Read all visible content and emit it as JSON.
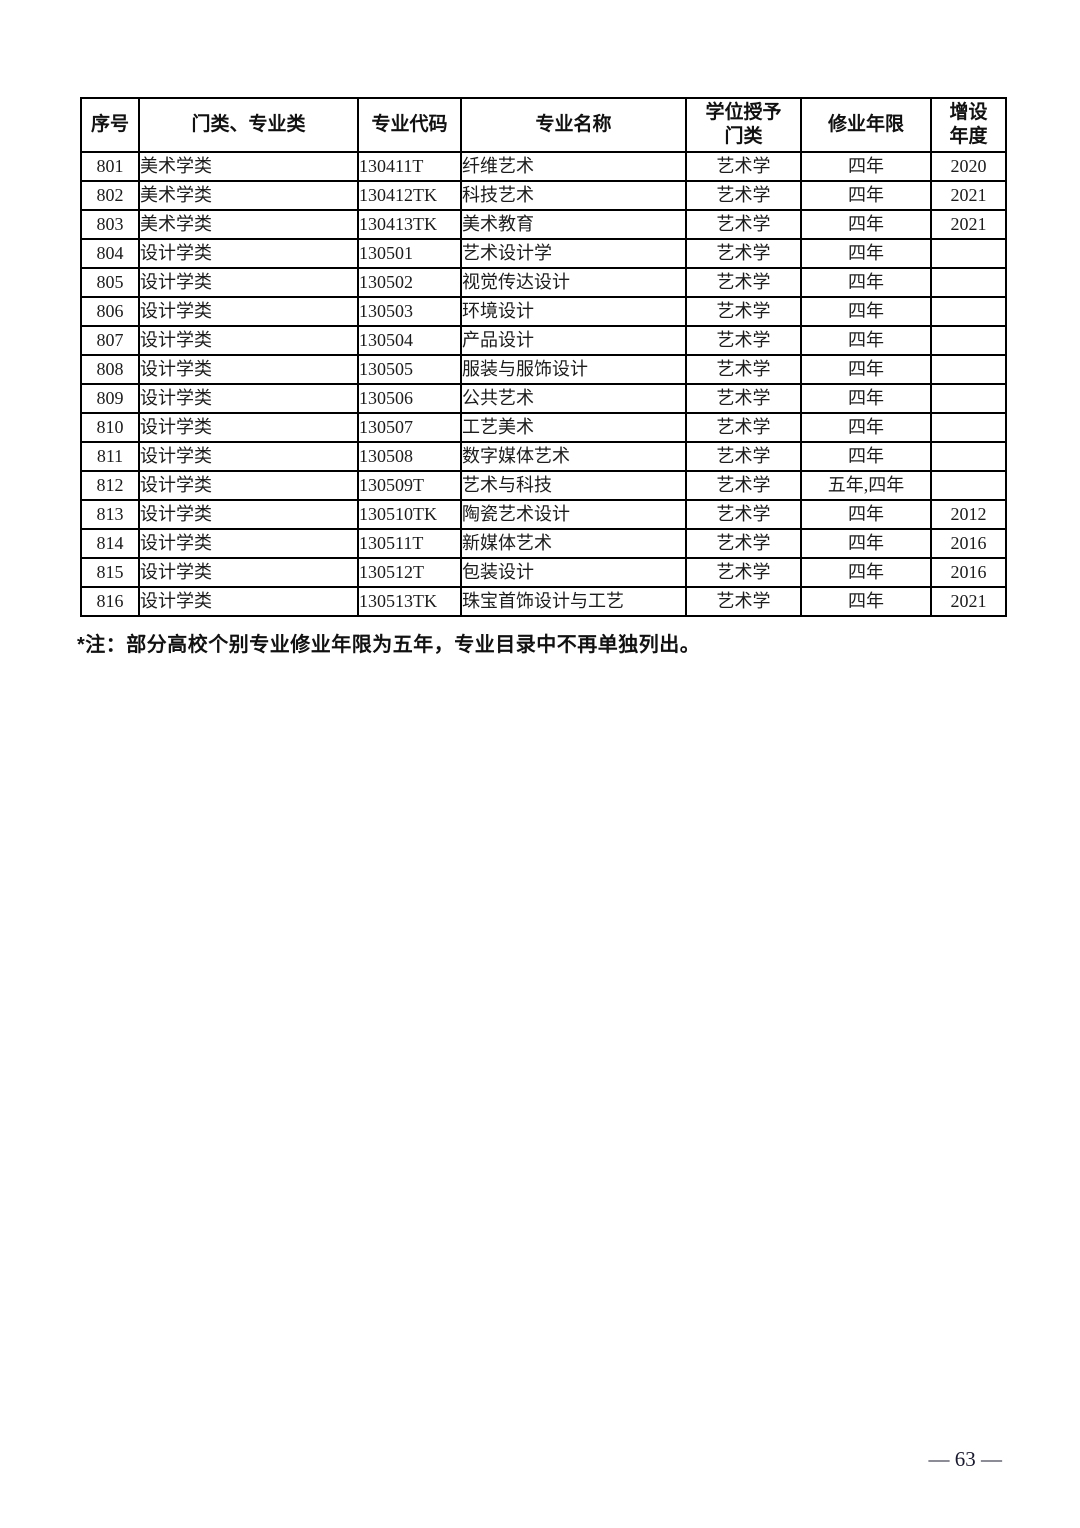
{
  "table": {
    "headers": [
      "序号",
      "门类、专业类",
      "专业代码",
      "专业名称",
      "学位授予\n门类",
      "修业年限",
      "增设\n年度"
    ],
    "rows": [
      [
        "801",
        "美术学类",
        "130411T",
        "纤维艺术",
        "艺术学",
        "四年",
        "2020"
      ],
      [
        "802",
        "美术学类",
        "130412TK",
        "科技艺术",
        "艺术学",
        "四年",
        "2021"
      ],
      [
        "803",
        "美术学类",
        "130413TK",
        "美术教育",
        "艺术学",
        "四年",
        "2021"
      ],
      [
        "804",
        "设计学类",
        "130501",
        "艺术设计学",
        "艺术学",
        "四年",
        ""
      ],
      [
        "805",
        "设计学类",
        "130502",
        "视觉传达设计",
        "艺术学",
        "四年",
        ""
      ],
      [
        "806",
        "设计学类",
        "130503",
        "环境设计",
        "艺术学",
        "四年",
        ""
      ],
      [
        "807",
        "设计学类",
        "130504",
        "产品设计",
        "艺术学",
        "四年",
        ""
      ],
      [
        "808",
        "设计学类",
        "130505",
        "服装与服饰设计",
        "艺术学",
        "四年",
        ""
      ],
      [
        "809",
        "设计学类",
        "130506",
        "公共艺术",
        "艺术学",
        "四年",
        ""
      ],
      [
        "810",
        "设计学类",
        "130507",
        "工艺美术",
        "艺术学",
        "四年",
        ""
      ],
      [
        "811",
        "设计学类",
        "130508",
        "数字媒体艺术",
        "艺术学",
        "四年",
        ""
      ],
      [
        "812",
        "设计学类",
        "130509T",
        "艺术与科技",
        "艺术学",
        "五年,四年",
        ""
      ],
      [
        "813",
        "设计学类",
        "130510TK",
        "陶瓷艺术设计",
        "艺术学",
        "四年",
        "2012"
      ],
      [
        "814",
        "设计学类",
        "130511T",
        "新媒体艺术",
        "艺术学",
        "四年",
        "2016"
      ],
      [
        "815",
        "设计学类",
        "130512T",
        "包装设计",
        "艺术学",
        "四年",
        "2016"
      ],
      [
        "816",
        "设计学类",
        "130513TK",
        "珠宝首饰设计与工艺",
        "艺术学",
        "四年",
        "2021"
      ]
    ]
  },
  "footnote": "*注：部分高校个别专业修业年限为五年，专业目录中不再单独列出。",
  "page_number": "— 63 —"
}
